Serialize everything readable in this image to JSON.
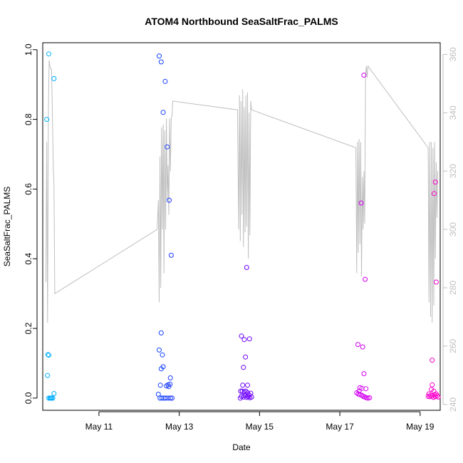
{
  "chart_data": {
    "type": "scatter",
    "title": "ATOM4 Northbound SeaSaltFrac_PALMS",
    "xlabel": "Date",
    "ylabel": "SeaSaltFrac_PALMS",
    "x_units": "days since May 10 (00:00)",
    "xlim": [
      -0.4,
      9.5
    ],
    "ylim": [
      -0.035,
      1.02
    ],
    "y_ticks": [
      0.0,
      0.2,
      0.4,
      0.6,
      0.8,
      1.0
    ],
    "y_tick_labels": [
      "0.0",
      "0.2",
      "0.4",
      "0.6",
      "0.8",
      "1.0"
    ],
    "x_ticks": [
      1,
      3,
      5,
      7,
      9
    ],
    "x_tick_labels": [
      "May 11",
      "May 13",
      "May 15",
      "May 17",
      "May 19"
    ],
    "grid": false,
    "legend": "none",
    "point_color_gradient": [
      "#00b4ff",
      "#0050ff",
      "#6a00ff",
      "#c800ff",
      "#ff00c8"
    ],
    "secondary_axis": {
      "position": "right",
      "color": "#bfbfbf",
      "ylim": [
        238,
        364
      ],
      "ticks": [
        240,
        260,
        280,
        300,
        320,
        340,
        360
      ],
      "tick_labels": [
        "240",
        "260",
        "280",
        "300",
        "320",
        "340",
        "360"
      ]
    },
    "points": [
      {
        "x": -0.3,
        "y": 0.8
      },
      {
        "x": -0.28,
        "y": 0.065
      },
      {
        "x": -0.27,
        "y": 0.125
      },
      {
        "x": -0.25,
        "y": 0.123
      },
      {
        "x": -0.25,
        "y": 0.0
      },
      {
        "x": -0.22,
        "y": 0.0
      },
      {
        "x": -0.2,
        "y": 0.0
      },
      {
        "x": -0.18,
        "y": 0.0
      },
      {
        "x": -0.15,
        "y": 0.0
      },
      {
        "x": -0.12,
        "y": 0.013
      },
      {
        "x": -0.25,
        "y": 0.988
      },
      {
        "x": -0.12,
        "y": 0.917
      },
      {
        "x": 2.5,
        "y": 0.982
      },
      {
        "x": 2.55,
        "y": 0.965
      },
      {
        "x": 2.65,
        "y": 0.909
      },
      {
        "x": 2.6,
        "y": 0.82
      },
      {
        "x": 2.7,
        "y": 0.721
      },
      {
        "x": 2.75,
        "y": 0.568
      },
      {
        "x": 2.8,
        "y": 0.41
      },
      {
        "x": 2.55,
        "y": 0.187
      },
      {
        "x": 2.5,
        "y": 0.138
      },
      {
        "x": 2.58,
        "y": 0.124
      },
      {
        "x": 2.6,
        "y": 0.09
      },
      {
        "x": 2.55,
        "y": 0.084
      },
      {
        "x": 2.78,
        "y": 0.058
      },
      {
        "x": 2.53,
        "y": 0.037
      },
      {
        "x": 2.68,
        "y": 0.035
      },
      {
        "x": 2.72,
        "y": 0.038
      },
      {
        "x": 2.74,
        "y": 0.033
      },
      {
        "x": 2.77,
        "y": 0.04
      },
      {
        "x": 2.48,
        "y": 0.011
      },
      {
        "x": 2.52,
        "y": 0.0
      },
      {
        "x": 2.57,
        "y": 0.0
      },
      {
        "x": 2.62,
        "y": 0.0
      },
      {
        "x": 2.66,
        "y": 0.0
      },
      {
        "x": 2.72,
        "y": 0.0
      },
      {
        "x": 2.78,
        "y": 0.0
      },
      {
        "x": 2.82,
        "y": 0.0
      },
      {
        "x": 4.55,
        "y": 0.178
      },
      {
        "x": 4.62,
        "y": 0.168
      },
      {
        "x": 4.75,
        "y": 0.17
      },
      {
        "x": 4.65,
        "y": 0.118
      },
      {
        "x": 4.6,
        "y": 0.088
      },
      {
        "x": 4.68,
        "y": 0.375
      },
      {
        "x": 4.58,
        "y": 0.037
      },
      {
        "x": 4.7,
        "y": 0.037
      },
      {
        "x": 4.53,
        "y": 0.02
      },
      {
        "x": 4.57,
        "y": 0.02
      },
      {
        "x": 4.62,
        "y": 0.018
      },
      {
        "x": 4.66,
        "y": 0.02
      },
      {
        "x": 4.7,
        "y": 0.015
      },
      {
        "x": 4.78,
        "y": 0.014
      },
      {
        "x": 4.55,
        "y": 0.005
      },
      {
        "x": 4.6,
        "y": 0.003
      },
      {
        "x": 4.64,
        "y": 0.007
      },
      {
        "x": 4.68,
        "y": 0.002
      },
      {
        "x": 4.72,
        "y": 0.004
      },
      {
        "x": 4.76,
        "y": 0.001
      },
      {
        "x": 4.8,
        "y": 0.003
      },
      {
        "x": 4.52,
        "y": 0.0
      },
      {
        "x": 4.74,
        "y": 0.009
      },
      {
        "x": 7.45,
        "y": 0.154
      },
      {
        "x": 7.57,
        "y": 0.147
      },
      {
        "x": 7.6,
        "y": 0.07
      },
      {
        "x": 7.53,
        "y": 0.56
      },
      {
        "x": 7.6,
        "y": 0.927
      },
      {
        "x": 7.63,
        "y": 0.341
      },
      {
        "x": 7.5,
        "y": 0.03
      },
      {
        "x": 7.55,
        "y": 0.028
      },
      {
        "x": 7.42,
        "y": 0.015
      },
      {
        "x": 7.46,
        "y": 0.012
      },
      {
        "x": 7.5,
        "y": 0.01
      },
      {
        "x": 7.55,
        "y": 0.008
      },
      {
        "x": 7.58,
        "y": 0.005
      },
      {
        "x": 7.62,
        "y": 0.003
      },
      {
        "x": 7.66,
        "y": 0.001
      },
      {
        "x": 7.7,
        "y": 0.0
      },
      {
        "x": 7.74,
        "y": 0.001
      },
      {
        "x": 7.48,
        "y": 0.02
      },
      {
        "x": 7.65,
        "y": 0.027
      },
      {
        "x": 9.3,
        "y": 0.109
      },
      {
        "x": 9.3,
        "y": 0.038
      },
      {
        "x": 9.35,
        "y": 0.587
      },
      {
        "x": 9.38,
        "y": 0.62
      },
      {
        "x": 9.4,
        "y": 0.333
      },
      {
        "x": 9.28,
        "y": 0.025
      },
      {
        "x": 9.34,
        "y": 0.02
      },
      {
        "x": 9.2,
        "y": 0.005
      },
      {
        "x": 9.24,
        "y": 0.004
      },
      {
        "x": 9.26,
        "y": 0.008
      },
      {
        "x": 9.3,
        "y": 0.006
      },
      {
        "x": 9.33,
        "y": 0.002
      },
      {
        "x": 9.36,
        "y": 0.01
      },
      {
        "x": 9.38,
        "y": 0.004
      },
      {
        "x": 9.4,
        "y": 0.012
      },
      {
        "x": 9.42,
        "y": 0.007
      },
      {
        "x": 9.22,
        "y": 0.012
      },
      {
        "x": 9.45,
        "y": 0.003
      }
    ],
    "secondary_series": {
      "name": "",
      "color": "#bfbfbf",
      "x": [
        -0.32,
        -0.3,
        -0.28,
        -0.26,
        -0.24,
        -0.22,
        -0.2,
        -0.18,
        -0.16,
        -0.14,
        -0.12,
        -0.1,
        2.45,
        2.48,
        2.5,
        2.52,
        2.54,
        2.56,
        2.58,
        2.6,
        2.62,
        2.64,
        2.66,
        2.68,
        2.7,
        2.72,
        2.74,
        2.76,
        2.78,
        2.8,
        2.82,
        2.84,
        4.45,
        4.48,
        4.5,
        4.52,
        4.54,
        4.56,
        4.58,
        4.6,
        4.62,
        4.64,
        4.66,
        4.68,
        4.7,
        4.72,
        4.74,
        4.76,
        4.78,
        4.8,
        7.4,
        7.42,
        7.44,
        7.46,
        7.48,
        7.5,
        7.52,
        7.54,
        7.56,
        7.58,
        7.6,
        7.62,
        7.64,
        7.66,
        7.68,
        7.7,
        9.2,
        9.22,
        9.24,
        9.26,
        9.28,
        9.3,
        9.32,
        9.34,
        9.36,
        9.38,
        9.4,
        9.42,
        9.44
      ],
      "y": [
        282,
        330,
        268,
        340,
        358,
        356,
        355,
        355,
        340,
        322,
        315,
        278,
        300,
        310,
        275,
        325,
        280,
        335,
        300,
        336,
        285,
        334,
        300,
        338,
        310,
        322,
        305,
        338,
        320,
        338,
        339,
        344,
        341,
        300,
        346,
        296,
        344,
        305,
        348,
        294,
        342,
        299,
        346,
        301,
        347,
        290,
        340,
        298,
        344,
        341,
        328,
        285,
        330,
        292,
        331,
        295,
        330,
        284,
        318,
        300,
        320,
        302,
        353,
        356,
        352,
        356,
        328,
        275,
        330,
        270,
        330,
        268,
        328,
        274,
        330,
        290,
        323,
        304,
        320
      ]
    }
  }
}
